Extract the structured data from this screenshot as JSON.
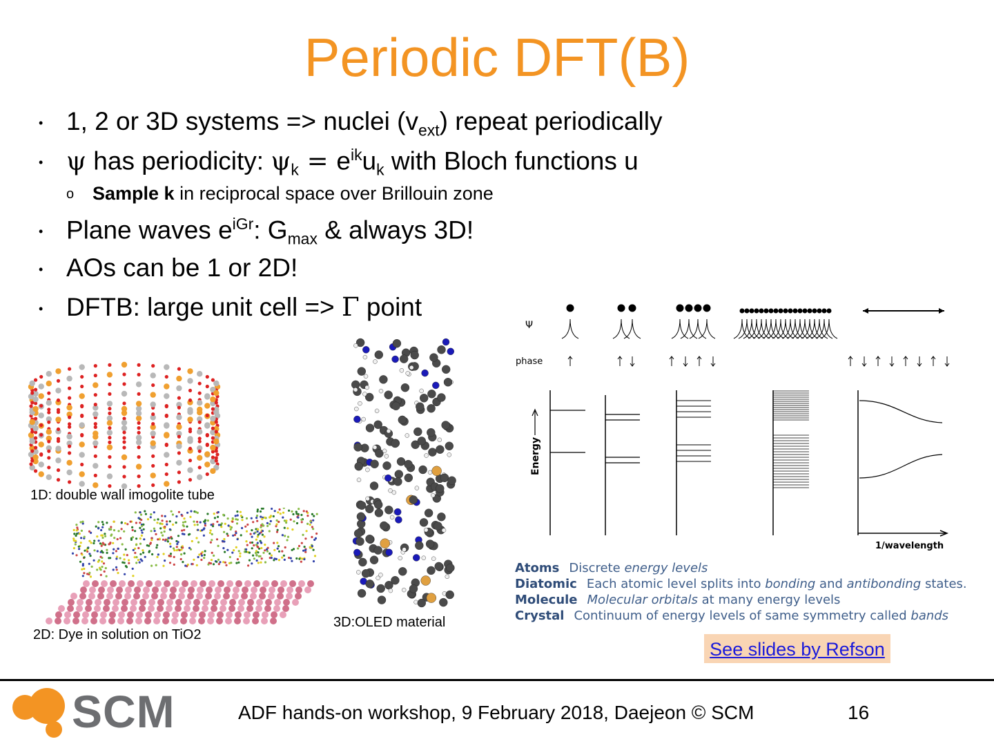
{
  "slide": {
    "title": "Periodic DFT(B)",
    "bullets": [
      {
        "pre": "1, 2 or 3D systems => nuclei (v",
        "sub": "ext",
        "post": ") repeat periodically"
      },
      {
        "psi1": "ψ",
        "t1": " has periodicity: ",
        "psi2": "ψ",
        "sub1": "k",
        "eq": " = ",
        "e": "e",
        "sup": "ik",
        "u": "u",
        "sub2": "k",
        "t2": " with Bloch functions u"
      },
      {
        "bold": "Sample k",
        "rest": " in reciprocal space over Brillouin zone"
      },
      {
        "pre": "Plane waves e",
        "sup": "iGr",
        "mid": ": G",
        "sub": "max",
        "post": " & always 3D!"
      },
      {
        "text": "AOs can be 1 or 2D!"
      },
      {
        "pre": "DFTB: large unit cell => ",
        "gamma": "Γ",
        "post": " point"
      }
    ],
    "captions": {
      "c1": "1D: double wall imogolite tube",
      "c2": "2D: Dye in solution on TiO2",
      "c3": "3D:OLED material"
    },
    "diagram": {
      "psi_label": "Ψ",
      "phase_label": "phase",
      "energy_label": "Energy",
      "x_label": "1/wavelength"
    },
    "legend": [
      {
        "term": "Atoms",
        "desc_html": "Discrete <i>energy levels</i>"
      },
      {
        "term": "Diatomic",
        "desc_html": "Each atomic level splits into <i>bonding</i> and <i>antibonding</i> states."
      },
      {
        "term": "Molecule",
        "desc_html": "<i>Molecular orbitals</i> at many energy levels"
      },
      {
        "term": "Crystal",
        "desc_html": "Continuum of energy levels of same symmetry called <i>bands</i>"
      }
    ],
    "refson_link": "See slides by Refson",
    "footer": "ADF hands-on workshop,  9 February 2018, Daejeon  © SCM",
    "page_number": "16",
    "logo": "SCM",
    "colors": {
      "title": "#f39423",
      "link": "#1a1adb",
      "link_bg": "#f9d5b4",
      "legend": "#3f5e8a"
    }
  }
}
